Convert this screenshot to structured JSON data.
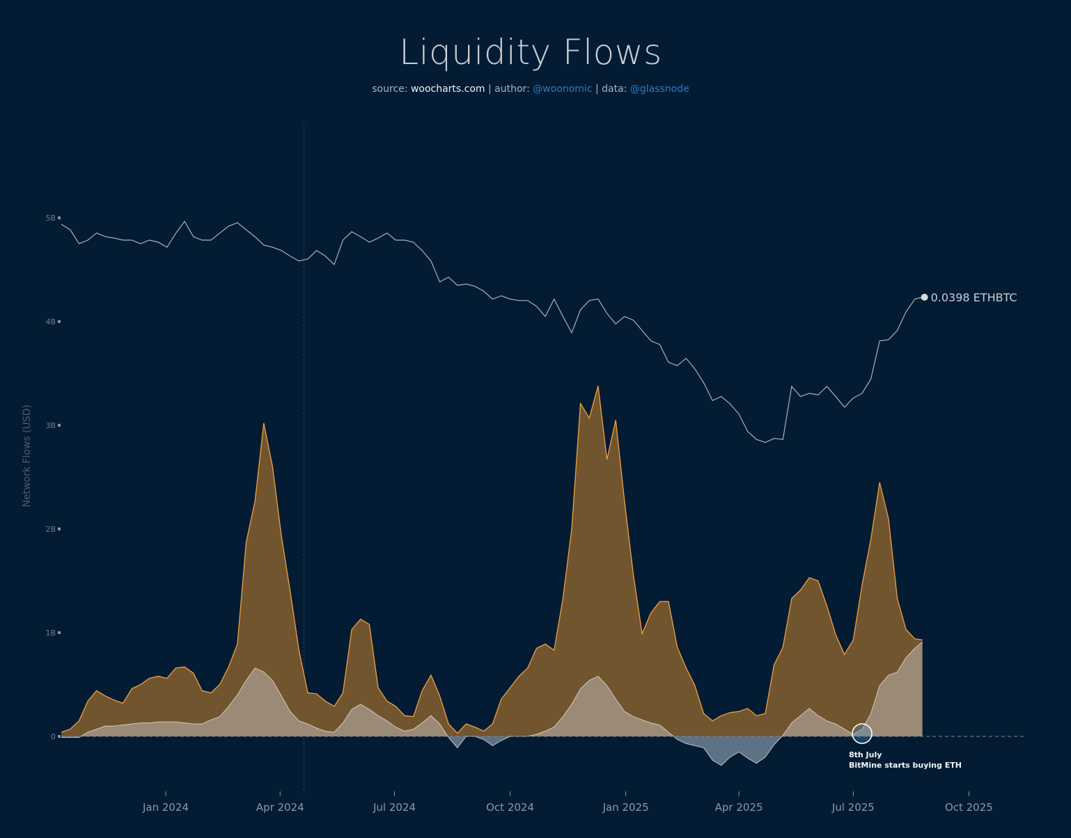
{
  "header": {
    "title": "Liquidity Flows",
    "source_prefix": "source: ",
    "source": "woocharts.com",
    "sep1": " | author: ",
    "author": "@woonomic",
    "sep2": " | data: ",
    "data_source": "@glassnode"
  },
  "chart_data": {
    "type": "area",
    "title": "Liquidity Flows",
    "ylabel": "Network Flows (USD)",
    "xlabel": "",
    "y_ticks": [
      "0",
      "1B",
      "2B",
      "3B",
      "4B",
      "5B"
    ],
    "ylim_billions": [
      -0.5,
      5.7
    ],
    "x_ticks": [
      {
        "label": "Jan 2024",
        "date": "2024-01-01"
      },
      {
        "label": "Apr 2024",
        "date": "2024-04-01"
      },
      {
        "label": "Jul 2024",
        "date": "2024-07-01"
      },
      {
        "label": "Oct 2024",
        "date": "2024-10-01"
      },
      {
        "label": "Jan 2025",
        "date": "2025-01-01"
      },
      {
        "label": "Apr 2025",
        "date": "2025-04-01"
      },
      {
        "label": "Jul 2025",
        "date": "2025-07-01"
      },
      {
        "label": "Oct 2025",
        "date": "2025-10-01"
      }
    ],
    "x_range": [
      "2023-10-10",
      "2025-10-31"
    ],
    "grid": false,
    "legend": "none",
    "vertical_marker_date": "2024-04-20",
    "dates": [
      "2023-10-10",
      "2023-10-17",
      "2023-10-24",
      "2023-10-31",
      "2023-11-07",
      "2023-11-14",
      "2023-11-21",
      "2023-11-28",
      "2023-12-05",
      "2023-12-12",
      "2023-12-19",
      "2023-12-26",
      "2024-01-02",
      "2024-01-09",
      "2024-01-16",
      "2024-01-23",
      "2024-01-30",
      "2024-02-06",
      "2024-02-13",
      "2024-02-20",
      "2024-02-27",
      "2024-03-05",
      "2024-03-12",
      "2024-03-19",
      "2024-03-26",
      "2024-04-02",
      "2024-04-09",
      "2024-04-16",
      "2024-04-23",
      "2024-04-30",
      "2024-05-07",
      "2024-05-14",
      "2024-05-21",
      "2024-05-28",
      "2024-06-04",
      "2024-06-11",
      "2024-06-18",
      "2024-06-25",
      "2024-07-02",
      "2024-07-09",
      "2024-07-16",
      "2024-07-23",
      "2024-07-30",
      "2024-08-06",
      "2024-08-13",
      "2024-08-20",
      "2024-08-27",
      "2024-09-03",
      "2024-09-10",
      "2024-09-17",
      "2024-09-24",
      "2024-10-01",
      "2024-10-08",
      "2024-10-15",
      "2024-10-22",
      "2024-10-29",
      "2024-11-05",
      "2024-11-12",
      "2024-11-19",
      "2024-11-26",
      "2024-12-03",
      "2024-12-10",
      "2024-12-17",
      "2024-12-24",
      "2024-12-31",
      "2025-01-07",
      "2025-01-14",
      "2025-01-21",
      "2025-01-28",
      "2025-02-04",
      "2025-02-11",
      "2025-02-18",
      "2025-02-25",
      "2025-03-04",
      "2025-03-11",
      "2025-03-18",
      "2025-03-25",
      "2025-04-01",
      "2025-04-08",
      "2025-04-15",
      "2025-04-22",
      "2025-04-29",
      "2025-05-06",
      "2025-05-13",
      "2025-05-20",
      "2025-05-27",
      "2025-06-03",
      "2025-06-10",
      "2025-06-17",
      "2025-06-24",
      "2025-07-01",
      "2025-07-08",
      "2025-07-15",
      "2025-07-22",
      "2025-07-29",
      "2025-08-05",
      "2025-08-12",
      "2025-08-19",
      "2025-08-25"
    ],
    "series": [
      {
        "unit": "USD billions",
        "color": "#f0a040",
        "fill": "#71552f",
        "values": [
          0.04,
          0.07,
          0.15,
          0.34,
          0.44,
          0.39,
          0.35,
          0.32,
          0.46,
          0.5,
          0.56,
          0.58,
          0.56,
          0.66,
          0.67,
          0.61,
          0.44,
          0.42,
          0.5,
          0.67,
          0.89,
          1.87,
          2.27,
          3.02,
          2.6,
          1.93,
          1.4,
          0.83,
          0.42,
          0.41,
          0.34,
          0.29,
          0.42,
          1.03,
          1.13,
          1.08,
          0.47,
          0.34,
          0.29,
          0.2,
          0.19,
          0.44,
          0.59,
          0.39,
          0.12,
          0.03,
          0.12,
          0.09,
          0.05,
          0.12,
          0.36,
          0.47,
          0.58,
          0.66,
          0.85,
          0.89,
          0.83,
          1.33,
          2.0,
          3.21,
          3.07,
          3.38,
          2.67,
          3.05,
          2.27,
          1.56,
          0.99,
          1.19,
          1.3,
          1.3,
          0.86,
          0.66,
          0.49,
          0.22,
          0.15,
          0.2,
          0.23,
          0.24,
          0.27,
          0.2,
          0.22,
          0.69,
          0.86,
          1.33,
          1.41,
          1.53,
          1.5,
          1.26,
          0.98,
          0.79,
          0.93,
          1.46,
          1.9,
          2.45,
          2.1,
          1.33,
          1.03,
          0.94,
          0.93
        ]
      },
      {
        "unit": "USD billions",
        "color": "#e6e0d8",
        "fill": "#9a8a76",
        "negative_fill": "#5d7284",
        "values": [
          -0.01,
          -0.01,
          -0.01,
          0.04,
          0.07,
          0.1,
          0.1,
          0.11,
          0.12,
          0.13,
          0.13,
          0.14,
          0.14,
          0.14,
          0.13,
          0.12,
          0.12,
          0.16,
          0.19,
          0.29,
          0.4,
          0.54,
          0.66,
          0.62,
          0.54,
          0.39,
          0.24,
          0.15,
          0.12,
          0.08,
          0.05,
          0.04,
          0.13,
          0.26,
          0.31,
          0.26,
          0.2,
          0.15,
          0.09,
          0.05,
          0.07,
          0.13,
          0.2,
          0.12,
          -0.01,
          -0.11,
          0.0,
          0.0,
          -0.03,
          -0.09,
          -0.04,
          0.0,
          0.0,
          0.0,
          0.02,
          0.05,
          0.09,
          0.19,
          0.31,
          0.46,
          0.54,
          0.58,
          0.49,
          0.36,
          0.24,
          0.19,
          0.16,
          0.13,
          0.11,
          0.04,
          -0.03,
          -0.07,
          -0.09,
          -0.11,
          -0.23,
          -0.28,
          -0.2,
          -0.15,
          -0.21,
          -0.26,
          -0.2,
          -0.08,
          0.01,
          0.13,
          0.2,
          0.27,
          0.2,
          0.15,
          0.12,
          0.07,
          0.02,
          0.07,
          0.22,
          0.49,
          0.59,
          0.62,
          0.76,
          0.85,
          0.91
        ]
      },
      {
        "name": "ETHBTC",
        "scale": "log",
        "color": "#a9b2bb",
        "values": [
          0.0588,
          0.0571,
          0.053,
          0.054,
          0.0561,
          0.055,
          0.0546,
          0.054,
          0.054,
          0.053,
          0.054,
          0.0534,
          0.052,
          0.056,
          0.0597,
          0.055,
          0.054,
          0.054,
          0.0561,
          0.0582,
          0.0593,
          0.0571,
          0.055,
          0.0526,
          0.052,
          0.0511,
          0.0496,
          0.0483,
          0.0488,
          0.0511,
          0.0496,
          0.0474,
          0.054,
          0.0565,
          0.055,
          0.0534,
          0.0546,
          0.0561,
          0.054,
          0.054,
          0.0534,
          0.0511,
          0.0483,
          0.0432,
          0.0443,
          0.0424,
          0.0427,
          0.0422,
          0.0411,
          0.0394,
          0.0401,
          0.0394,
          0.0391,
          0.0391,
          0.0379,
          0.0359,
          0.0394,
          0.0359,
          0.0329,
          0.0372,
          0.0391,
          0.0394,
          0.0365,
          0.0345,
          0.0359,
          0.0352,
          0.0333,
          0.0315,
          0.0309,
          0.0281,
          0.0276,
          0.0287,
          0.0271,
          0.0252,
          0.0229,
          0.0234,
          0.0225,
          0.0213,
          0.0194,
          0.0186,
          0.0183,
          0.0187,
          0.0186,
          0.0247,
          0.0234,
          0.0238,
          0.0236,
          0.0247,
          0.0234,
          0.0221,
          0.0232,
          0.0238,
          0.0257,
          0.0315,
          0.0317,
          0.0333,
          0.0368,
          0.0394,
          0.0398
        ],
        "end_label": "0.0398 ETHBTC"
      }
    ],
    "annotation": {
      "date": "2025-07-08",
      "line1": "8th July",
      "line2": "BitMine starts buying ETH"
    }
  }
}
